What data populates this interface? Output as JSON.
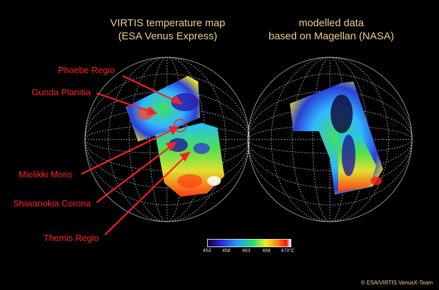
{
  "titles": {
    "left_line1": "VIRTIS temperature map",
    "left_line2": "(ESA Venus Express)",
    "right_line1": "modelled data",
    "right_line2": "based on Magellan (NASA)"
  },
  "labels": {
    "phoebe": "Phoebe Regio",
    "gunda": "Gunda Planitia",
    "mielikki": "Mielikki Mons",
    "shiwanokia": "Shiwanokia Corona",
    "themis": "Themis Regio"
  },
  "colorbar": {
    "ticks": [
      "453",
      "458",
      "463",
      "468",
      "473°C"
    ],
    "colors": [
      "#1a0033",
      "#2a1fd6",
      "#1f9cff",
      "#20e070",
      "#f0f020",
      "#ff7a10",
      "#ff1010",
      "#ffffff"
    ]
  },
  "credit": "© ESA/VIRTIS VenusX-Team",
  "colors": {
    "title": "#f0d08a",
    "label": "#ff2020",
    "grid": "#cfcfcf"
  }
}
